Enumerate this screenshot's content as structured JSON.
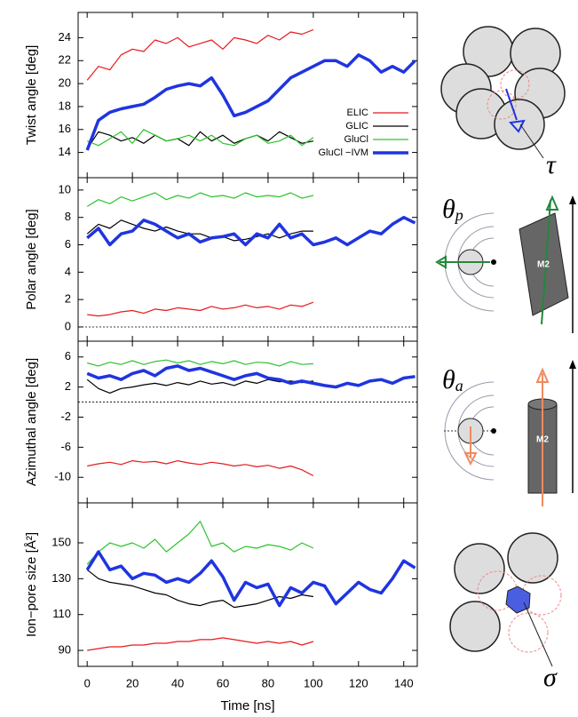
{
  "chart_data": [
    {
      "type": "line",
      "ylabel": "Twist angle [deg]",
      "x": [
        0,
        5,
        10,
        15,
        20,
        25,
        30,
        35,
        40,
        45,
        50,
        55,
        60,
        65,
        70,
        75,
        80,
        85,
        90,
        95,
        100,
        105,
        110,
        115,
        120,
        125,
        130,
        135,
        140,
        145
      ],
      "xlim": [
        -4,
        146
      ],
      "xticks": [
        0,
        20,
        40,
        60,
        80,
        100,
        120,
        140
      ],
      "ylim": [
        11.8,
        26.2
      ],
      "yticks": [
        14,
        16,
        18,
        20,
        22,
        24
      ],
      "legend": "right",
      "symbol": "τ",
      "series": [
        {
          "name": "ELIC",
          "color": "#e8191c",
          "line_width": 1.2,
          "values": [
            20.3,
            21.5,
            21.2,
            22.5,
            23.0,
            22.8,
            23.8,
            23.5,
            24.0,
            23.2,
            23.5,
            23.8,
            23.0,
            24.0,
            23.8,
            23.5,
            24.2,
            23.8,
            24.5,
            24.3,
            24.7,
            null,
            null,
            null,
            null,
            null,
            null,
            null,
            null,
            null
          ]
        },
        {
          "name": "GLIC",
          "color": "#000000",
          "line_width": 1.2,
          "values": [
            14.3,
            15.8,
            15.5,
            15.0,
            15.3,
            14.8,
            15.5,
            15.0,
            15.2,
            14.6,
            15.8,
            15.0,
            15.5,
            14.8,
            15.2,
            15.5,
            15.0,
            15.8,
            15.3,
            14.8,
            15.0,
            null,
            null,
            null,
            null,
            null,
            null,
            null,
            null,
            null
          ]
        },
        {
          "name": "GluCl",
          "color": "#2dc42d",
          "line_width": 1.2,
          "values": [
            15.0,
            14.6,
            15.2,
            15.8,
            14.8,
            16.0,
            15.5,
            15.0,
            15.2,
            15.5,
            15.0,
            15.5,
            14.8,
            14.6,
            15.2,
            15.5,
            14.8,
            15.0,
            15.5,
            14.6,
            15.3,
            null,
            null,
            null,
            null,
            null,
            null,
            null,
            null,
            null
          ]
        },
        {
          "name": "GluCl −IVM",
          "color": "#1f35e0",
          "line_width": 3.5,
          "values": [
            14.2,
            16.8,
            17.5,
            17.8,
            18.0,
            18.2,
            18.8,
            19.5,
            19.8,
            20.0,
            19.8,
            20.5,
            19.0,
            17.2,
            17.5,
            18.0,
            18.5,
            19.5,
            20.5,
            21.0,
            21.5,
            22.0,
            22.0,
            21.5,
            22.5,
            22.0,
            21.0,
            21.5,
            21.0,
            22.0
          ]
        }
      ]
    },
    {
      "type": "line",
      "ylabel": "Polar angle [deg]",
      "x": [
        0,
        5,
        10,
        15,
        20,
        25,
        30,
        35,
        40,
        45,
        50,
        55,
        60,
        65,
        70,
        75,
        80,
        85,
        90,
        95,
        100,
        105,
        110,
        115,
        120,
        125,
        130,
        135,
        140,
        145
      ],
      "xlim": [
        -4,
        146
      ],
      "xticks": [
        0,
        20,
        40,
        60,
        80,
        100,
        120,
        140
      ],
      "ylim": [
        -1.04,
        10.9
      ],
      "yticks": [
        0,
        2,
        4,
        6,
        8,
        10
      ],
      "zero_line": true,
      "symbol": "θ",
      "symbol_subscript": "p",
      "cylinder_label": "M2",
      "series": [
        {
          "color": "#e8191c",
          "line_width": 1.2,
          "values": [
            0.9,
            0.8,
            0.9,
            1.1,
            1.2,
            1.0,
            1.3,
            1.2,
            1.4,
            1.3,
            1.2,
            1.5,
            1.3,
            1.4,
            1.6,
            1.4,
            1.5,
            1.3,
            1.6,
            1.5,
            1.8,
            null,
            null,
            null,
            null,
            null,
            null,
            null,
            null,
            null
          ]
        },
        {
          "color": "#000000",
          "line_width": 1.2,
          "values": [
            6.8,
            7.5,
            7.2,
            7.8,
            7.5,
            7.2,
            7.0,
            7.3,
            7.0,
            6.8,
            6.8,
            6.5,
            6.6,
            6.3,
            6.4,
            6.6,
            6.8,
            6.5,
            6.8,
            7.0,
            7.0,
            null,
            null,
            null,
            null,
            null,
            null,
            null,
            null,
            null
          ]
        },
        {
          "color": "#2dc42d",
          "line_width": 1.2,
          "values": [
            8.8,
            9.3,
            9.0,
            9.5,
            9.2,
            9.5,
            9.8,
            9.3,
            9.6,
            9.4,
            9.8,
            9.5,
            9.6,
            9.4,
            9.8,
            9.5,
            9.6,
            9.5,
            9.8,
            9.4,
            9.6,
            null,
            null,
            null,
            null,
            null,
            null,
            null,
            null,
            null
          ]
        },
        {
          "color": "#1f35e0",
          "line_width": 3.5,
          "values": [
            6.5,
            7.2,
            6.0,
            6.8,
            7.0,
            7.8,
            7.5,
            7.0,
            6.5,
            6.8,
            6.2,
            6.5,
            6.6,
            6.8,
            6.0,
            6.8,
            6.5,
            7.5,
            6.5,
            6.8,
            6.0,
            6.2,
            6.5,
            6.0,
            6.5,
            7.0,
            6.8,
            7.5,
            8.0,
            7.6
          ]
        }
      ]
    },
    {
      "type": "line",
      "ylabel": "Azimuthal angle [deg]",
      "x": [
        0,
        5,
        10,
        15,
        20,
        25,
        30,
        35,
        40,
        45,
        50,
        55,
        60,
        65,
        70,
        75,
        80,
        85,
        90,
        95,
        100,
        105,
        110,
        115,
        120,
        125,
        130,
        135,
        140,
        145
      ],
      "xlim": [
        -4,
        146
      ],
      "xticks": [
        0,
        20,
        40,
        60,
        80,
        100,
        120,
        140
      ],
      "ylim": [
        -13.4,
        8.1
      ],
      "yticks": [
        -10,
        -6,
        -2,
        2,
        6
      ],
      "zero_line": true,
      "symbol": "θ",
      "symbol_subscript": "a",
      "cylinder_label": "M2",
      "series": [
        {
          "color": "#e8191c",
          "line_width": 1.2,
          "values": [
            -8.5,
            -8.2,
            -8.0,
            -8.3,
            -7.8,
            -8.0,
            -7.9,
            -8.2,
            -7.8,
            -8.1,
            -8.3,
            -8.0,
            -8.2,
            -8.5,
            -8.3,
            -8.6,
            -8.4,
            -8.8,
            -8.5,
            -9.0,
            -9.8,
            null,
            null,
            null,
            null,
            null,
            null,
            null,
            null,
            null
          ]
        },
        {
          "color": "#000000",
          "line_width": 1.2,
          "values": [
            3.0,
            1.8,
            1.2,
            1.8,
            2.0,
            2.3,
            2.5,
            2.2,
            2.6,
            2.3,
            2.8,
            2.4,
            2.6,
            2.2,
            2.8,
            2.5,
            3.0,
            2.7,
            2.8,
            2.6,
            2.8,
            null,
            null,
            null,
            null,
            null,
            null,
            null,
            null,
            null
          ]
        },
        {
          "color": "#2dc42d",
          "line_width": 1.2,
          "values": [
            5.2,
            4.8,
            5.3,
            5.0,
            5.5,
            5.0,
            5.4,
            5.6,
            5.2,
            5.5,
            5.0,
            5.4,
            5.1,
            5.5,
            5.0,
            5.3,
            5.2,
            4.8,
            5.4,
            5.0,
            5.1,
            null,
            null,
            null,
            null,
            null,
            null,
            null,
            null,
            null
          ]
        },
        {
          "color": "#1f35e0",
          "line_width": 3.5,
          "values": [
            3.8,
            3.2,
            3.5,
            3.0,
            3.8,
            4.2,
            3.5,
            4.5,
            4.8,
            4.2,
            4.5,
            4.0,
            3.5,
            3.0,
            3.5,
            3.8,
            3.2,
            3.0,
            2.5,
            2.8,
            2.5,
            2.2,
            2.0,
            2.5,
            2.2,
            2.8,
            3.0,
            2.5,
            3.2,
            3.4
          ]
        }
      ]
    },
    {
      "type": "line",
      "ylabel": "Ion−pore size [Å²]",
      "xlabel": "Time [ns]",
      "x": [
        0,
        5,
        10,
        15,
        20,
        25,
        30,
        35,
        40,
        45,
        50,
        55,
        60,
        65,
        70,
        75,
        80,
        85,
        90,
        95,
        100,
        105,
        110,
        115,
        120,
        125,
        130,
        135,
        140,
        145
      ],
      "xlim": [
        -4,
        146
      ],
      "xticks": [
        0,
        20,
        40,
        60,
        80,
        100,
        120,
        140
      ],
      "ylim": [
        81.1,
        172.3
      ],
      "yticks": [
        90,
        110,
        130,
        150
      ],
      "symbol": "σ",
      "series": [
        {
          "color": "#e8191c",
          "line_width": 1.2,
          "values": [
            90,
            91,
            92,
            92,
            93,
            93,
            94,
            94,
            95,
            95,
            96,
            96,
            97,
            96,
            95,
            94,
            95,
            94,
            95,
            93,
            95,
            null,
            null,
            null,
            null,
            null,
            null,
            null,
            null,
            null
          ]
        },
        {
          "color": "#000000",
          "line_width": 1.2,
          "values": [
            135,
            130,
            128,
            127,
            126,
            124,
            122,
            121,
            118,
            116,
            115,
            117,
            118,
            114,
            115,
            116,
            118,
            120,
            119,
            121,
            120,
            null,
            null,
            null,
            null,
            null,
            null,
            null,
            null,
            null
          ]
        },
        {
          "color": "#2dc42d",
          "line_width": 1.2,
          "values": [
            138,
            145,
            150,
            148,
            150,
            147,
            152,
            145,
            150,
            155,
            162,
            148,
            150,
            145,
            148,
            147,
            149,
            148,
            146,
            150,
            147,
            null,
            null,
            null,
            null,
            null,
            null,
            null,
            null,
            null
          ]
        },
        {
          "color": "#1f35e0",
          "line_width": 3.5,
          "values": [
            135,
            145,
            135,
            137,
            130,
            133,
            132,
            128,
            130,
            128,
            133,
            140,
            131,
            118,
            128,
            125,
            127,
            115,
            125,
            122,
            128,
            126,
            116,
            122,
            128,
            124,
            122,
            130,
            140,
            136
          ]
        }
      ]
    }
  ]
}
